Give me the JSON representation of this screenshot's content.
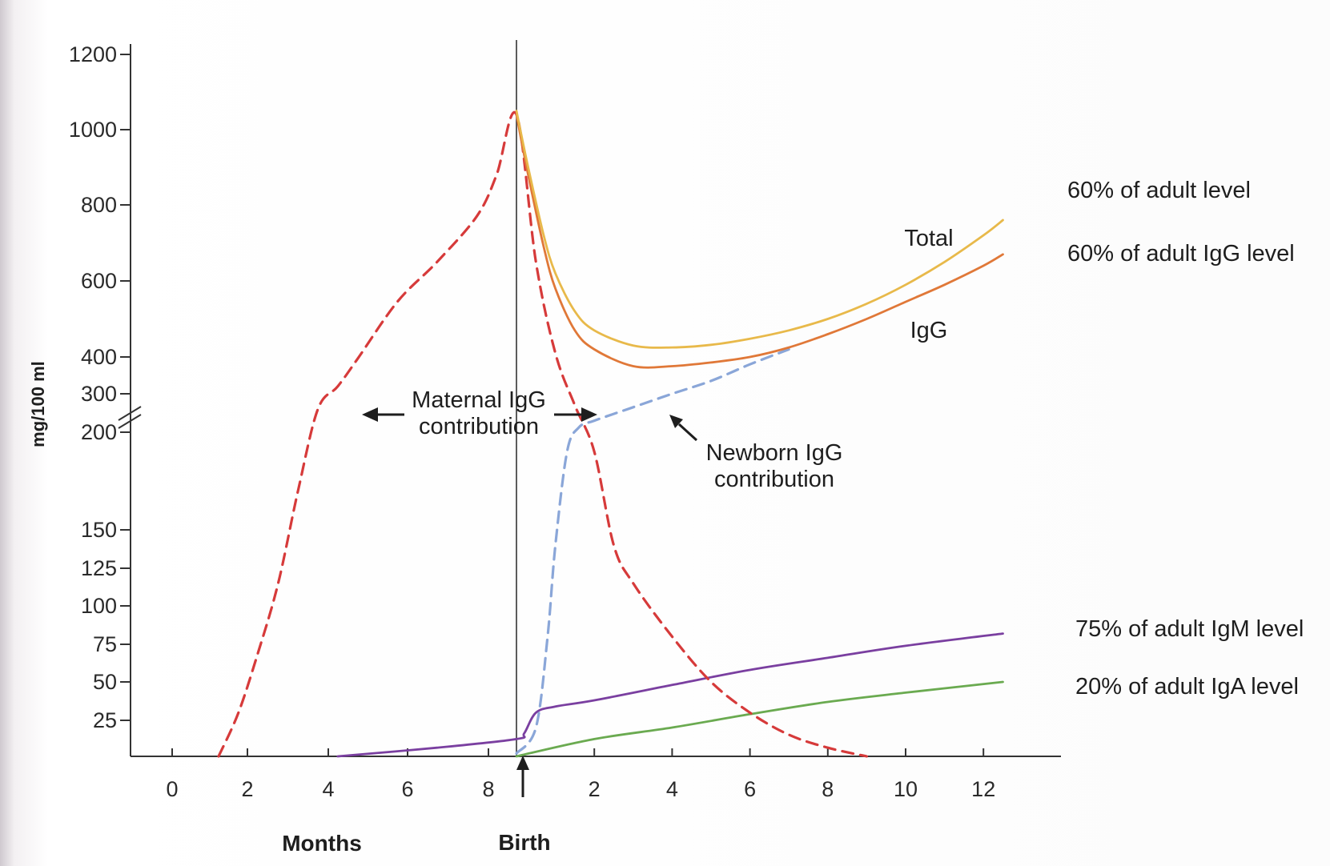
{
  "chart_data": {
    "type": "line",
    "xlabel_left": "Months",
    "xlabel_center": "Birth",
    "ylabel": "mg/100 ml",
    "y_ticks": [
      "1200",
      "1000",
      "800",
      "600",
      "400",
      "300",
      "200",
      "150",
      "125",
      "100",
      "75",
      "50",
      "25"
    ],
    "x_ticks_prenatal": [
      "0",
      "2",
      "4",
      "6",
      "8"
    ],
    "x_ticks_postnatal": [
      "2",
      "4",
      "6",
      "8",
      "10",
      "12"
    ],
    "x_axis_note": "x = months of gestation (negative, birth = 0) and months after birth (positive)",
    "y_axis_note": "broken axis: 0-150 linear, 200-1200 linear",
    "series": [
      {
        "name": "Total",
        "color": "#e8b94a",
        "style": "solid",
        "x": [
          0,
          0.3,
          0.7,
          1,
          1.5,
          2,
          3,
          4,
          5,
          6,
          7,
          8,
          9,
          10,
          11,
          12,
          12.5
        ],
        "y": [
          1050,
          900,
          720,
          620,
          520,
          470,
          430,
          425,
          432,
          448,
          470,
          500,
          540,
          590,
          650,
          720,
          760
        ]
      },
      {
        "name": "IgG",
        "color": "#e07838",
        "style": "solid",
        "x": [
          0,
          0.3,
          0.7,
          1,
          1.5,
          2,
          3,
          4,
          5,
          6,
          7,
          8,
          9,
          10,
          11,
          12,
          12.5
        ],
        "y": [
          1040,
          880,
          690,
          580,
          470,
          420,
          375,
          375,
          385,
          400,
          425,
          460,
          500,
          545,
          590,
          640,
          670
        ]
      },
      {
        "name": "Maternal IgG contribution",
        "color": "#d63a3a",
        "style": "dashed",
        "x": [
          -7.5,
          -7,
          -6.5,
          -6,
          -5.5,
          -5,
          -4.5,
          -4,
          -3,
          -2,
          -1,
          -0.5,
          0,
          0.5,
          1,
          1.5,
          2,
          2.5,
          3,
          4,
          5,
          6,
          7,
          8,
          9
        ],
        "y": [
          0,
          30,
          70,
          115,
          170,
          260,
          320,
          395,
          545,
          650,
          770,
          880,
          1040,
          650,
          410,
          270,
          190,
          140,
          115,
          80,
          50,
          30,
          15,
          6,
          0
        ]
      },
      {
        "name": "Newborn IgG contribution",
        "color": "#8aa6d8",
        "style": "dashed",
        "x": [
          0,
          0.5,
          0.8,
          1,
          1.3,
          1.6,
          2,
          3,
          4,
          5,
          6,
          7
        ],
        "y": [
          2,
          20,
          80,
          140,
          190,
          212,
          230,
          265,
          300,
          335,
          380,
          420
        ]
      },
      {
        "name": "IgM",
        "color": "#7a3fa0",
        "style": "solid",
        "x": [
          -4.5,
          -2,
          0,
          0.2,
          0.5,
          1,
          2,
          4,
          6,
          8,
          10,
          12.5
        ],
        "y": [
          0,
          6,
          12,
          16,
          30,
          34,
          38,
          48,
          58,
          66,
          74,
          82
        ]
      },
      {
        "name": "IgA",
        "color": "#6aaa50",
        "style": "solid",
        "x": [
          0,
          2,
          4,
          6,
          8,
          10,
          12.5
        ],
        "y": [
          0,
          12,
          20,
          29,
          37,
          43,
          50
        ]
      }
    ],
    "annotations": [
      {
        "label1": "60% of adult level",
        "series": "Total"
      },
      {
        "label1": "60% of adult IgG level",
        "series": "IgG"
      },
      {
        "label1": "75% of adult IgM level",
        "series": "IgM"
      },
      {
        "label1": "20% of adult IgA level",
        "series": "IgA"
      }
    ],
    "text": {
      "total": "Total",
      "igg": "IgG",
      "maternal_1": "Maternal IgG",
      "maternal_2": "contribution",
      "newborn_1": "Newborn IgG",
      "newborn_2": "contribution",
      "ann_total": "60% of adult level",
      "ann_igg": "60% of adult IgG level",
      "ann_igm": "75% of adult IgM level",
      "ann_iga": "20% of adult IgA level"
    }
  }
}
